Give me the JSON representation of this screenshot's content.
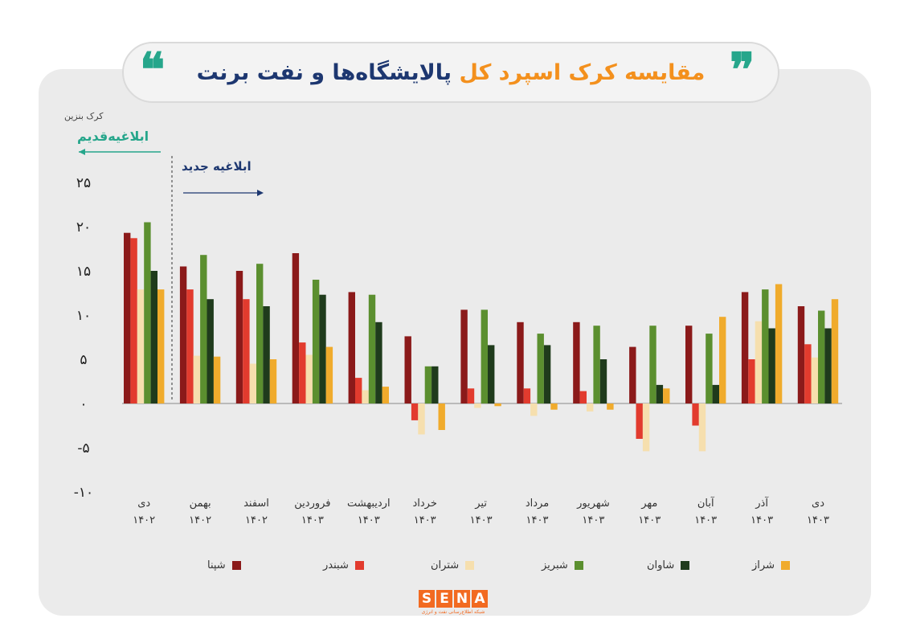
{
  "title": {
    "part_orange": "مقایسه کرک اسپرد کل",
    "part_blue": "پالایشگاه‌ها و نفت برنت",
    "quote_open": "❝",
    "quote_close": "❞"
  },
  "annotations": {
    "ylabel": "کرک بنزین",
    "old_notice": "ابلاغیه‌قدیم",
    "new_notice": "ابلاغیه جدید"
  },
  "colors": {
    "شپنا": "#8b1a1a",
    "شبندر": "#e23b2e",
    "شتران": "#f6dfae",
    "شبریز": "#5b8f2f",
    "شاوان": "#1f3b1c",
    "شراز": "#f0ab2c",
    "old_notice": "#26a68b",
    "new_notice": "#1d3770"
  },
  "logo": {
    "letters": [
      "S",
      "E",
      "N",
      "A"
    ],
    "sub": "شبکه اطلاع‌رسانی نفت و انرژی"
  },
  "chart_data": {
    "type": "bar",
    "ylabel": "کرک بنزین",
    "ylim": [
      -10,
      25
    ],
    "yticks": [
      "۲۵",
      "۲۰",
      "۱۵",
      "۱۰",
      "۵",
      "۰",
      "-۵",
      "-۱۰"
    ],
    "ytick_values": [
      25,
      20,
      15,
      10,
      5,
      0,
      -5,
      -10
    ],
    "grid": false,
    "legend_position": "bottom",
    "categories": [
      {
        "month": "دی",
        "year": "۱۴۰۲"
      },
      {
        "month": "بهمن",
        "year": "۱۴۰۲"
      },
      {
        "month": "اسفند",
        "year": "۱۴۰۲"
      },
      {
        "month": "فروردین",
        "year": "۱۴۰۳"
      },
      {
        "month": "اردیبهشت",
        "year": "۱۴۰۳"
      },
      {
        "month": "خرداد",
        "year": "۱۴۰۳"
      },
      {
        "month": "تیر",
        "year": "۱۴۰۳"
      },
      {
        "month": "مرداد",
        "year": "۱۴۰۳"
      },
      {
        "month": "شهریور",
        "year": "۱۴۰۳"
      },
      {
        "month": "مهر",
        "year": "۱۴۰۳"
      },
      {
        "month": "آبان",
        "year": "۱۴۰۳"
      },
      {
        "month": "آذر",
        "year": "۱۴۰۳"
      },
      {
        "month": "دی",
        "year": "۱۴۰۳"
      }
    ],
    "series": [
      {
        "name": "شپنا",
        "values": [
          19.3,
          15.5,
          15.0,
          17.0,
          12.6,
          7.6,
          10.6,
          9.2,
          9.2,
          6.4,
          8.8,
          12.6,
          11.0
        ]
      },
      {
        "name": "شبندر",
        "values": [
          18.7,
          12.9,
          11.8,
          6.9,
          2.9,
          -1.9,
          1.7,
          1.7,
          1.4,
          -4.0,
          -2.5,
          5.0,
          6.7
        ]
      },
      {
        "name": "شتران",
        "values": [
          12.9,
          5.4,
          4.5,
          5.5,
          1.5,
          -3.5,
          -0.5,
          -1.4,
          -0.9,
          -5.4,
          -5.4,
          9.3,
          5.2
        ]
      },
      {
        "name": "شبریز",
        "values": [
          20.5,
          16.8,
          15.8,
          14.0,
          12.3,
          4.2,
          10.6,
          7.9,
          8.8,
          8.8,
          7.9,
          12.9,
          10.5
        ]
      },
      {
        "name": "شاوان",
        "values": [
          15.0,
          11.8,
          11.0,
          12.3,
          9.2,
          4.2,
          6.6,
          6.6,
          5.0,
          2.1,
          2.1,
          8.5,
          8.5
        ]
      },
      {
        "name": "شراز",
        "values": [
          12.9,
          5.3,
          5.0,
          6.4,
          1.9,
          -3.0,
          -0.3,
          -0.7,
          -0.7,
          1.7,
          9.8,
          13.5,
          11.8
        ]
      }
    ]
  }
}
